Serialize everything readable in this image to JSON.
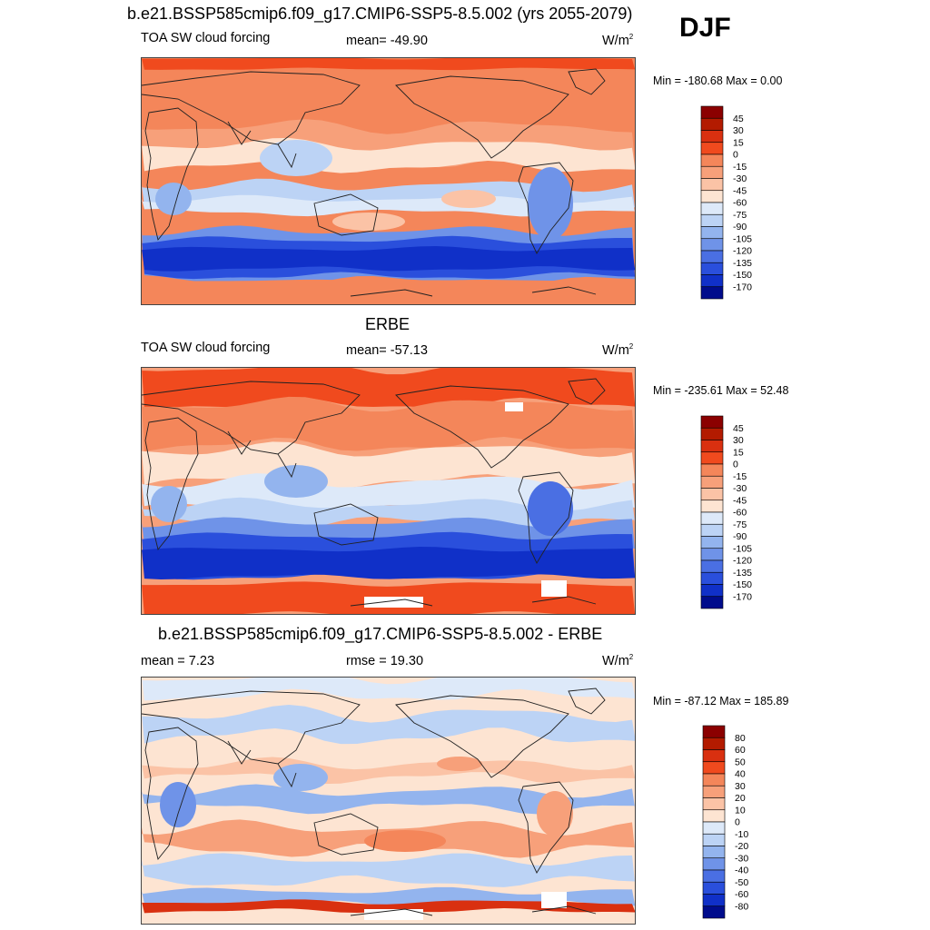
{
  "season": "DJF",
  "panels": [
    {
      "title": "b.e21.BSSP585cmip6.f09_g17.CMIP6-SSP5-8.5.002 (yrs 2055-2079)",
      "left_label": "TOA SW cloud forcing",
      "center_label": "mean= -49.90",
      "units": "W/m",
      "units_sup": "2",
      "minmax": "Min = -180.68 Max =   0.00"
    },
    {
      "title": "ERBE",
      "left_label": "TOA SW cloud forcing",
      "center_label": "mean= -57.13",
      "units": "W/m",
      "units_sup": "2",
      "minmax": "Min = -235.61 Max =  52.48"
    },
    {
      "title": "b.e21.BSSP585cmip6.f09_g17.CMIP6-SSP5-8.5.002 - ERBE",
      "left_label": "mean =   7.23",
      "center_label": "rmse =  19.30",
      "units": "W/m",
      "units_sup": "2",
      "minmax": "Min = -87.12 Max = 185.89"
    }
  ],
  "chart_data": [
    {
      "type": "heatmap",
      "title": "b.e21.BSSP585cmip6.f09_g17.CMIP6-SSP5-8.5.002 (yrs 2055-2079)",
      "variable": "TOA SW cloud forcing",
      "units": "W/m2",
      "mean": -49.9,
      "min": -180.68,
      "max": 0.0,
      "colorbar_levels": [
        45,
        30,
        15,
        0,
        -15,
        -30,
        -45,
        -60,
        -75,
        -90,
        -105,
        -120,
        -135,
        -150,
        -170
      ],
      "colors": [
        "#8b0000",
        "#b31b00",
        "#d93010",
        "#f04a1e",
        "#f4865a",
        "#f7a07a",
        "#fbc3a6",
        "#fde4d2",
        "#dde9f9",
        "#bcd3f5",
        "#93b4ee",
        "#6f93e8",
        "#4a6fe3",
        "#2a4fdc",
        "#1030c8",
        "#000c8c"
      ]
    },
    {
      "type": "heatmap",
      "title": "ERBE",
      "variable": "TOA SW cloud forcing",
      "units": "W/m2",
      "mean": -57.13,
      "min": -235.61,
      "max": 52.48,
      "colorbar_levels": [
        45,
        30,
        15,
        0,
        -15,
        -30,
        -45,
        -60,
        -75,
        -90,
        -105,
        -120,
        -135,
        -150,
        -170
      ],
      "colors": [
        "#8b0000",
        "#b31b00",
        "#d93010",
        "#f04a1e",
        "#f4865a",
        "#f7a07a",
        "#fbc3a6",
        "#fde4d2",
        "#dde9f9",
        "#bcd3f5",
        "#93b4ee",
        "#6f93e8",
        "#4a6fe3",
        "#2a4fdc",
        "#1030c8",
        "#000c8c"
      ]
    },
    {
      "type": "heatmap",
      "title": "b.e21.BSSP585cmip6.f09_g17.CMIP6-SSP5-8.5.002 - ERBE",
      "variable": "difference",
      "units": "W/m2",
      "mean": 7.23,
      "rmse": 19.3,
      "min": -87.12,
      "max": 185.89,
      "colorbar_levels": [
        80,
        60,
        50,
        40,
        30,
        20,
        10,
        0,
        -10,
        -20,
        -30,
        -40,
        -50,
        -60,
        -80
      ],
      "colors": [
        "#8b0000",
        "#b31b00",
        "#d93010",
        "#f04a1e",
        "#f4865a",
        "#f7a07a",
        "#fbc3a6",
        "#fde4d2",
        "#dde9f9",
        "#bcd3f5",
        "#93b4ee",
        "#6f93e8",
        "#4a6fe3",
        "#2a4fdc",
        "#1030c8",
        "#000c8c"
      ]
    }
  ]
}
